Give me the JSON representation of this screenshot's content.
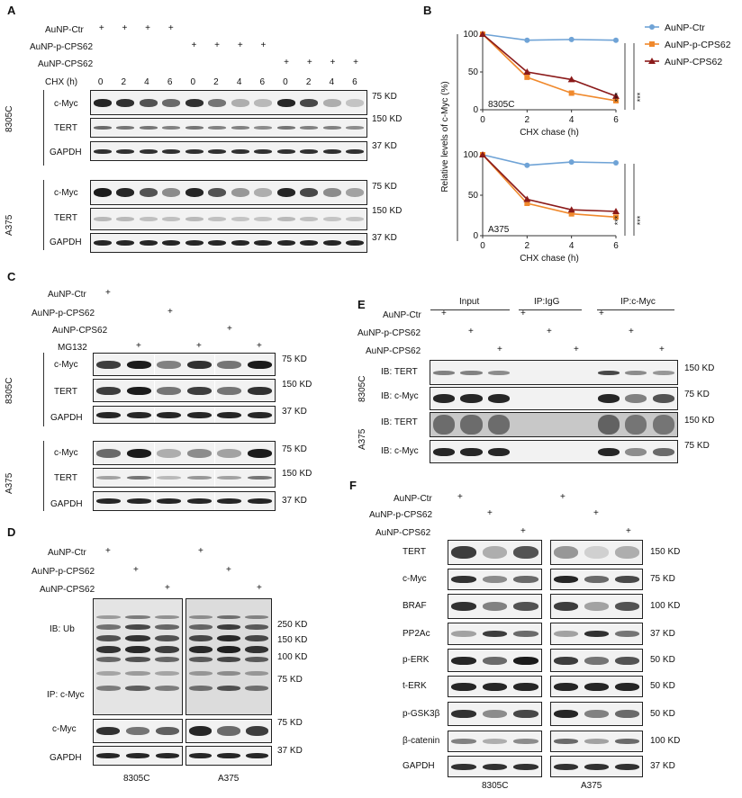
{
  "panels": {
    "A": "A",
    "B": "B",
    "C": "C",
    "D": "D",
    "E": "E",
    "F": "F"
  },
  "treat": {
    "ctr": "AuNP-Ctr",
    "p": "AuNP-p-CPS62",
    "cps": "AuNP-CPS62",
    "mg132": "MG132",
    "chx": "CHX (h)",
    "plus": "+"
  },
  "chx_times": [
    "0",
    "2",
    "4",
    "6",
    "0",
    "2",
    "4",
    "6",
    "0",
    "2",
    "4",
    "6"
  ],
  "proteins": {
    "cmyc": "c-Myc",
    "tert": "TERT",
    "gapdh": "GAPDH",
    "braf": "BRAF",
    "pp2ac": "PP2Ac",
    "perk": "p-ERK",
    "terk": "t-ERK",
    "pgsk": "p-GSK3β",
    "bcat": "β-catenin"
  },
  "cells": {
    "c8305": "8305C",
    "a375": "A375"
  },
  "kd": {
    "k75": "75 KD",
    "k150": "150 KD",
    "k37": "37 KD",
    "k250": "250 KD",
    "k100": "100 KD",
    "k50": "50 KD"
  },
  "panelD": {
    "ibub": "IB: Ub",
    "ipmyc": "IP: c-Myc"
  },
  "panelE": {
    "input": "Input",
    "ipigg": "IP:IgG",
    "ipmyc": "IP:c-Myc",
    "ibtert": "IB: TERT",
    "ibmyc": "IB: c-Myc"
  },
  "chart_data": [
    {
      "type": "line",
      "cell": "8305C",
      "x": [
        0,
        2,
        4,
        6
      ],
      "series": [
        {
          "name": "AuNP-Ctr",
          "values": [
            100,
            92,
            93,
            92
          ],
          "color": "#6fa3d6"
        },
        {
          "name": "AuNP-p-CPS62",
          "values": [
            100,
            43,
            22,
            12
          ],
          "color": "#f0892c"
        },
        {
          "name": "AuNP-CPS62",
          "values": [
            100,
            50,
            40,
            18
          ],
          "color": "#8b1a1a"
        }
      ],
      "xlabel": "CHX chase (h)",
      "ylabel": "Relative levels of c-Myc (%)",
      "xticks": [
        "0",
        "2",
        "4",
        "6"
      ],
      "yticks": [
        "0",
        "50",
        "100"
      ],
      "ylim": [
        0,
        100
      ],
      "significance": [
        "***",
        "***"
      ]
    },
    {
      "type": "line",
      "cell": "A375",
      "x": [
        0,
        2,
        4,
        6
      ],
      "series": [
        {
          "name": "AuNP-Ctr",
          "values": [
            100,
            87,
            91,
            90
          ],
          "color": "#6fa3d6"
        },
        {
          "name": "AuNP-p-CPS62",
          "values": [
            100,
            40,
            27,
            23
          ],
          "color": "#f0892c"
        },
        {
          "name": "AuNP-CPS62",
          "values": [
            100,
            45,
            32,
            30
          ],
          "color": "#8b1a1a"
        }
      ],
      "xlabel": "CHX chase (h)",
      "ylabel": "",
      "xticks": [
        "0",
        "2",
        "4",
        "6"
      ],
      "yticks": [
        "0",
        "50",
        "100"
      ],
      "ylim": [
        0,
        100
      ],
      "significance": [
        "***",
        "***"
      ]
    }
  ]
}
